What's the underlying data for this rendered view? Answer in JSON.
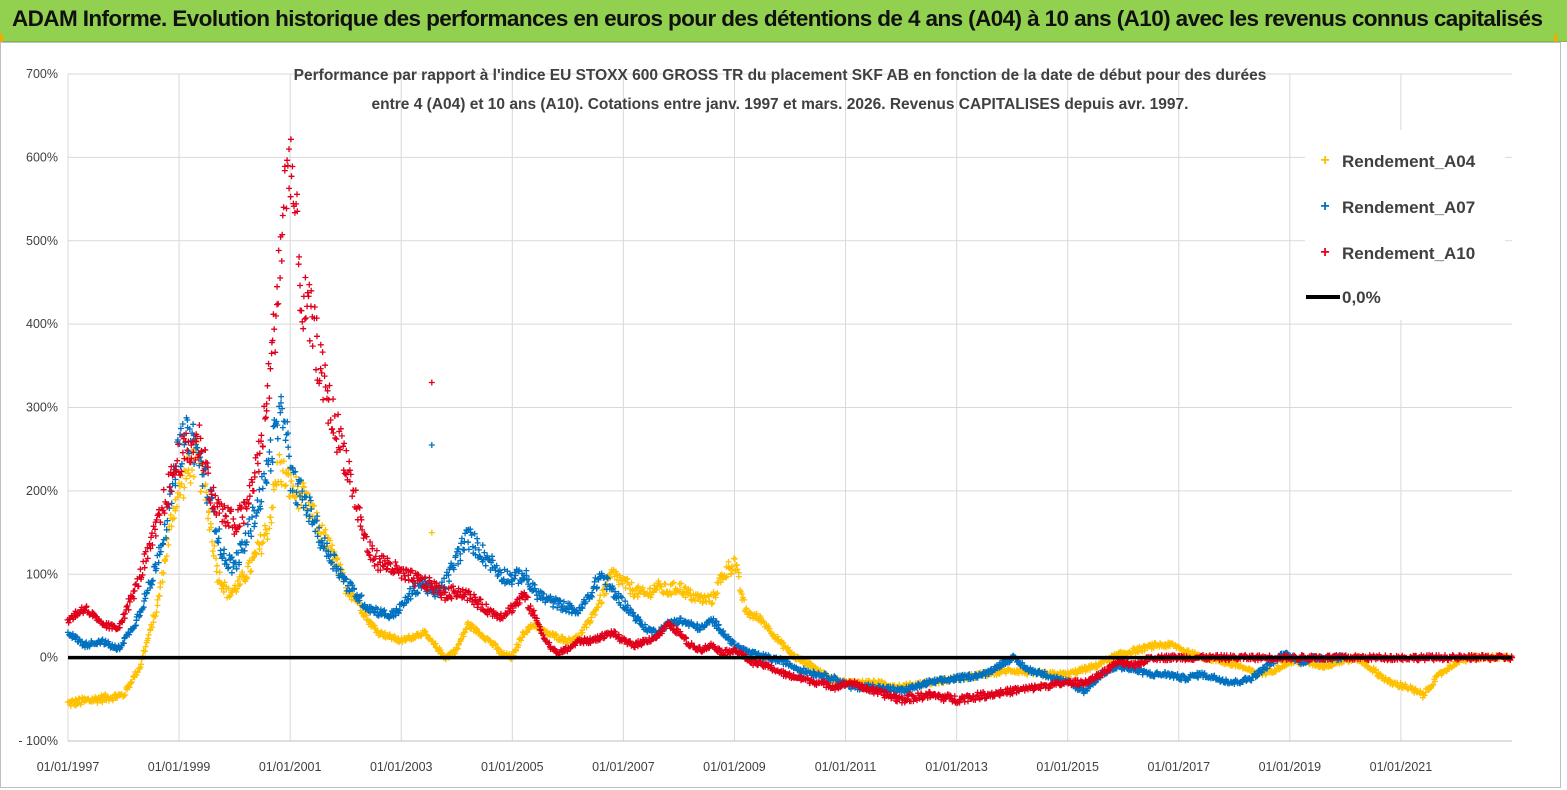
{
  "header": {
    "title": "ADAM Informe. Evolution historique des performances en euros pour des détentions de 4 ans (A04) à 10 ans (A10) avec les revenus connus capitalisés"
  },
  "chart_data": {
    "type": "scatter",
    "title_line1": "Performance par rapport à l'indice EU STOXX 600 GROSS TR  du placement SKF AB en fonction de la date de début pour des durées",
    "title_line2": "entre 4 (A04) et 10 ans (A10). Cotations entre janv. 1997 et mars. 2026. Revenus CAPITALISES depuis avr. 1997.",
    "x_unit": "year",
    "xlim": [
      1997.0,
      2023.0
    ],
    "ylim": [
      -100,
      700
    ],
    "y_ticks": [
      "- 100%",
      "0%",
      "100%",
      "200%",
      "300%",
      "400%",
      "500%",
      "600%",
      "700%"
    ],
    "x_ticks": [
      "01/01/1997",
      "01/01/1999",
      "01/01/2001",
      "01/01/2003",
      "01/01/2005",
      "01/01/2007",
      "01/01/2009",
      "01/01/2011",
      "01/01/2013",
      "01/01/2015",
      "01/01/2017",
      "01/01/2019",
      "01/01/2021"
    ],
    "legend_position": "top-right",
    "reference_line": {
      "name": "0,0%",
      "value": 0,
      "color": "#000000"
    },
    "series": [
      {
        "name": "Rendement_A04",
        "color": "#ffc000",
        "marker": "+",
        "points": [
          [
            1997.0,
            -55
          ],
          [
            1997.5,
            -50
          ],
          [
            1998.0,
            -45
          ],
          [
            1998.3,
            -10
          ],
          [
            1998.6,
            60
          ],
          [
            1998.9,
            180
          ],
          [
            1999.1,
            215
          ],
          [
            1999.3,
            240
          ],
          [
            1999.5,
            190
          ],
          [
            1999.7,
            100
          ],
          [
            1999.9,
            75
          ],
          [
            2000.1,
            90
          ],
          [
            2000.3,
            110
          ],
          [
            2000.6,
            155
          ],
          [
            2000.8,
            230
          ],
          [
            2001.0,
            205
          ],
          [
            2001.2,
            195
          ],
          [
            2001.4,
            170
          ],
          [
            2001.6,
            145
          ],
          [
            2001.8,
            120
          ],
          [
            2002.0,
            85
          ],
          [
            2002.2,
            70
          ],
          [
            2002.4,
            45
          ],
          [
            2002.6,
            30
          ],
          [
            2002.8,
            25
          ],
          [
            2003.0,
            20
          ],
          [
            2003.2,
            25
          ],
          [
            2003.4,
            30
          ],
          [
            2003.6,
            15
          ],
          [
            2003.8,
            0
          ],
          [
            2004.0,
            10
          ],
          [
            2004.2,
            40
          ],
          [
            2004.4,
            30
          ],
          [
            2004.6,
            20
          ],
          [
            2004.8,
            5
          ],
          [
            2005.0,
            0
          ],
          [
            2005.2,
            30
          ],
          [
            2005.4,
            40
          ],
          [
            2005.6,
            30
          ],
          [
            2005.8,
            25
          ],
          [
            2006.0,
            20
          ],
          [
            2006.2,
            25
          ],
          [
            2006.4,
            45
          ],
          [
            2006.6,
            70
          ],
          [
            2006.8,
            100
          ],
          [
            2007.0,
            90
          ],
          [
            2007.2,
            80
          ],
          [
            2007.4,
            75
          ],
          [
            2007.6,
            85
          ],
          [
            2007.8,
            80
          ],
          [
            2008.0,
            85
          ],
          [
            2008.2,
            75
          ],
          [
            2008.4,
            70
          ],
          [
            2008.6,
            70
          ],
          [
            2008.8,
            100
          ],
          [
            2009.0,
            115
          ],
          [
            2009.2,
            55
          ],
          [
            2009.5,
            45
          ],
          [
            2009.8,
            20
          ],
          [
            2010.1,
            0
          ],
          [
            2010.4,
            -10
          ],
          [
            2010.7,
            -25
          ],
          [
            2011.0,
            -30
          ],
          [
            2011.5,
            -30
          ],
          [
            2012.0,
            -35
          ],
          [
            2012.5,
            -30
          ],
          [
            2013.0,
            -25
          ],
          [
            2013.5,
            -20
          ],
          [
            2014.0,
            -15
          ],
          [
            2014.5,
            -20
          ],
          [
            2015.0,
            -20
          ],
          [
            2015.5,
            -10
          ],
          [
            2015.8,
            0
          ],
          [
            2016.0,
            5
          ],
          [
            2016.3,
            10
          ],
          [
            2016.6,
            15
          ],
          [
            2016.9,
            15
          ],
          [
            2017.2,
            5
          ],
          [
            2017.5,
            0
          ],
          [
            2017.8,
            -5
          ],
          [
            2018.1,
            -10
          ],
          [
            2018.4,
            -20
          ],
          [
            2018.7,
            -15
          ],
          [
            2019.0,
            -5
          ],
          [
            2019.3,
            -5
          ],
          [
            2019.6,
            -10
          ],
          [
            2019.9,
            -5
          ],
          [
            2020.2,
            0
          ],
          [
            2020.5,
            -15
          ],
          [
            2020.8,
            -30
          ],
          [
            2021.1,
            -35
          ],
          [
            2021.4,
            -45
          ],
          [
            2021.7,
            -20
          ],
          [
            2022.0,
            -5
          ],
          [
            2022.3,
            0
          ],
          [
            2022.6,
            0
          ],
          [
            2023.0,
            0
          ]
        ]
      },
      {
        "name": "Rendement_A07",
        "color": "#0070c0",
        "marker": "+",
        "points": [
          [
            1997.0,
            30
          ],
          [
            1997.3,
            15
          ],
          [
            1997.6,
            20
          ],
          [
            1997.9,
            10
          ],
          [
            1998.2,
            40
          ],
          [
            1998.5,
            90
          ],
          [
            1998.8,
            170
          ],
          [
            1999.0,
            250
          ],
          [
            1999.2,
            270
          ],
          [
            1999.4,
            230
          ],
          [
            1999.6,
            180
          ],
          [
            1999.8,
            120
          ],
          [
            2000.0,
            110
          ],
          [
            2000.2,
            140
          ],
          [
            2000.5,
            200
          ],
          [
            2000.7,
            260
          ],
          [
            2000.9,
            300
          ],
          [
            2001.0,
            215
          ],
          [
            2001.2,
            195
          ],
          [
            2001.4,
            170
          ],
          [
            2001.6,
            135
          ],
          [
            2001.8,
            115
          ],
          [
            2002.0,
            90
          ],
          [
            2002.2,
            75
          ],
          [
            2002.4,
            60
          ],
          [
            2002.6,
            55
          ],
          [
            2002.8,
            50
          ],
          [
            2003.0,
            60
          ],
          [
            2003.2,
            80
          ],
          [
            2003.4,
            90
          ],
          [
            2003.6,
            75
          ],
          [
            2003.8,
            90
          ],
          [
            2004.0,
            120
          ],
          [
            2004.2,
            145
          ],
          [
            2004.4,
            130
          ],
          [
            2004.6,
            115
          ],
          [
            2004.8,
            100
          ],
          [
            2005.0,
            95
          ],
          [
            2005.2,
            100
          ],
          [
            2005.4,
            80
          ],
          [
            2005.6,
            70
          ],
          [
            2005.8,
            65
          ],
          [
            2006.0,
            60
          ],
          [
            2006.2,
            55
          ],
          [
            2006.4,
            75
          ],
          [
            2006.6,
            100
          ],
          [
            2006.8,
            80
          ],
          [
            2007.0,
            65
          ],
          [
            2007.2,
            50
          ],
          [
            2007.4,
            35
          ],
          [
            2007.6,
            30
          ],
          [
            2007.8,
            40
          ],
          [
            2008.0,
            45
          ],
          [
            2008.2,
            40
          ],
          [
            2008.4,
            35
          ],
          [
            2008.6,
            45
          ],
          [
            2008.8,
            30
          ],
          [
            2009.0,
            15
          ],
          [
            2009.3,
            5
          ],
          [
            2009.6,
            0
          ],
          [
            2009.9,
            -5
          ],
          [
            2010.2,
            -15
          ],
          [
            2010.5,
            -20
          ],
          [
            2010.8,
            -25
          ],
          [
            2011.1,
            -35
          ],
          [
            2011.5,
            -35
          ],
          [
            2012.0,
            -40
          ],
          [
            2012.5,
            -30
          ],
          [
            2013.0,
            -25
          ],
          [
            2013.5,
            -20
          ],
          [
            2014.0,
            0
          ],
          [
            2014.3,
            -15
          ],
          [
            2014.6,
            -20
          ],
          [
            2015.0,
            -30
          ],
          [
            2015.3,
            -40
          ],
          [
            2015.6,
            -20
          ],
          [
            2015.9,
            -10
          ],
          [
            2016.2,
            -15
          ],
          [
            2016.5,
            -20
          ],
          [
            2016.8,
            -20
          ],
          [
            2017.1,
            -25
          ],
          [
            2017.4,
            -20
          ],
          [
            2017.7,
            -25
          ],
          [
            2018.0,
            -30
          ],
          [
            2018.3,
            -25
          ],
          [
            2018.6,
            -10
          ],
          [
            2018.9,
            5
          ],
          [
            2019.2,
            -5
          ],
          [
            2019.5,
            0
          ],
          [
            2019.8,
            0
          ],
          [
            2020.0,
            0
          ]
        ]
      },
      {
        "name": "Rendement_A10",
        "color": "#e0001b",
        "marker": "+",
        "points": [
          [
            1997.0,
            45
          ],
          [
            1997.3,
            60
          ],
          [
            1997.6,
            40
          ],
          [
            1997.9,
            35
          ],
          [
            1998.2,
            80
          ],
          [
            1998.5,
            135
          ],
          [
            1998.8,
            200
          ],
          [
            1999.0,
            240
          ],
          [
            1999.2,
            250
          ],
          [
            1999.4,
            260
          ],
          [
            1999.6,
            190
          ],
          [
            1999.8,
            170
          ],
          [
            2000.0,
            160
          ],
          [
            2000.2,
            175
          ],
          [
            2000.5,
            260
          ],
          [
            2000.7,
            380
          ],
          [
            2000.9,
            550
          ],
          [
            2001.0,
            610
          ],
          [
            2001.1,
            520
          ],
          [
            2001.2,
            430
          ],
          [
            2001.4,
            400
          ],
          [
            2001.6,
            330
          ],
          [
            2001.8,
            280
          ],
          [
            2002.0,
            240
          ],
          [
            2002.2,
            180
          ],
          [
            2002.4,
            130
          ],
          [
            2002.6,
            115
          ],
          [
            2002.8,
            110
          ],
          [
            2003.0,
            100
          ],
          [
            2003.2,
            95
          ],
          [
            2003.4,
            90
          ],
          [
            2003.6,
            85
          ],
          [
            2003.8,
            75
          ],
          [
            2004.0,
            80
          ],
          [
            2004.2,
            75
          ],
          [
            2004.4,
            65
          ],
          [
            2004.6,
            55
          ],
          [
            2004.8,
            50
          ],
          [
            2005.0,
            60
          ],
          [
            2005.2,
            75
          ],
          [
            2005.4,
            50
          ],
          [
            2005.6,
            20
          ],
          [
            2005.8,
            5
          ],
          [
            2006.0,
            10
          ],
          [
            2006.2,
            20
          ],
          [
            2006.4,
            20
          ],
          [
            2006.6,
            25
          ],
          [
            2006.8,
            30
          ],
          [
            2007.0,
            20
          ],
          [
            2007.2,
            15
          ],
          [
            2007.4,
            20
          ],
          [
            2007.6,
            25
          ],
          [
            2007.8,
            40
          ],
          [
            2008.0,
            30
          ],
          [
            2008.2,
            15
          ],
          [
            2008.4,
            10
          ],
          [
            2008.6,
            15
          ],
          [
            2008.8,
            5
          ],
          [
            2009.0,
            10
          ],
          [
            2009.3,
            -5
          ],
          [
            2009.6,
            -10
          ],
          [
            2009.9,
            -20
          ],
          [
            2010.2,
            -25
          ],
          [
            2010.5,
            -30
          ],
          [
            2010.8,
            -35
          ],
          [
            2011.1,
            -30
          ],
          [
            2011.5,
            -40
          ],
          [
            2012.0,
            -50
          ],
          [
            2012.5,
            -45
          ],
          [
            2013.0,
            -50
          ],
          [
            2013.5,
            -45
          ],
          [
            2014.0,
            -40
          ],
          [
            2014.5,
            -35
          ],
          [
            2015.0,
            -30
          ],
          [
            2015.3,
            -30
          ],
          [
            2015.6,
            -20
          ],
          [
            2015.9,
            -5
          ],
          [
            2016.2,
            -10
          ],
          [
            2016.5,
            0
          ],
          [
            2017.0,
            0
          ],
          [
            2018.0,
            0
          ],
          [
            2019.0,
            0
          ],
          [
            2020.0,
            0
          ],
          [
            2021.0,
            0
          ],
          [
            2022.0,
            0
          ],
          [
            2023.0,
            0
          ]
        ]
      }
    ],
    "outliers": [
      {
        "series": "Rendement_A10",
        "x": 2003.55,
        "y": 330
      },
      {
        "series": "Rendement_A07",
        "x": 2003.55,
        "y": 255
      },
      {
        "series": "Rendement_A04",
        "x": 2003.55,
        "y": 150
      }
    ]
  }
}
